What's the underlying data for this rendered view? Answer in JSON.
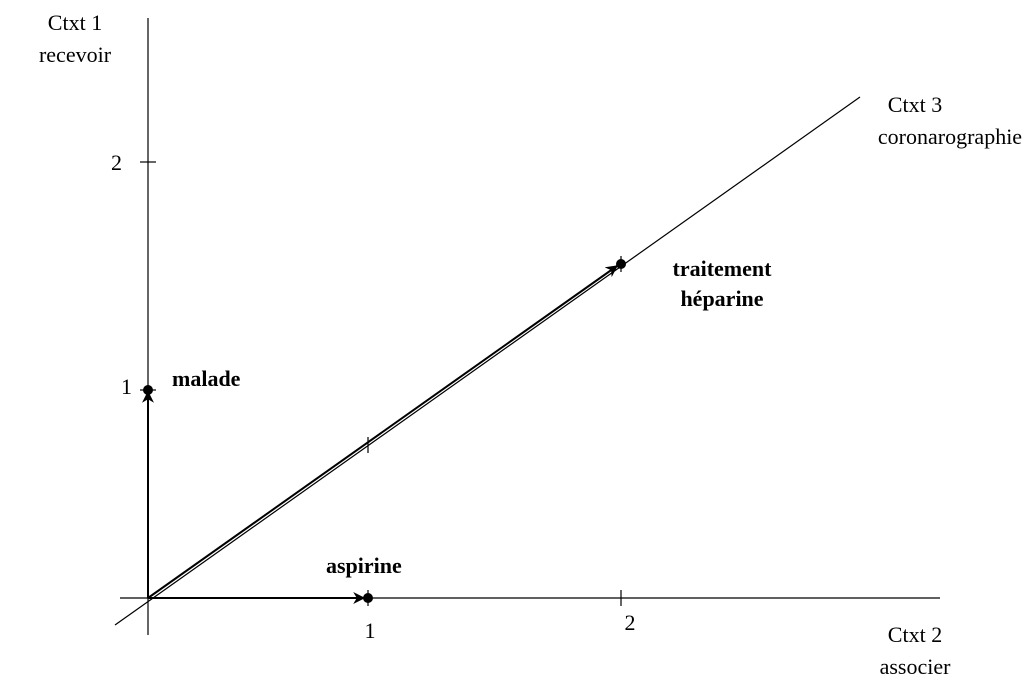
{
  "axes": [
    {
      "name": "Ctxt 1",
      "context": "recevoir"
    },
    {
      "name": "Ctxt 2",
      "context": "associer"
    },
    {
      "name": "Ctxt 3",
      "context": "coronarographie"
    }
  ],
  "ticks": {
    "vertical": [
      "1",
      "2"
    ],
    "horizontal": [
      "1",
      "2"
    ]
  },
  "points": [
    {
      "label": "malade"
    },
    {
      "label": "aspirine"
    },
    {
      "label": [
        "traitement",
        "héparine"
      ]
    }
  ]
}
